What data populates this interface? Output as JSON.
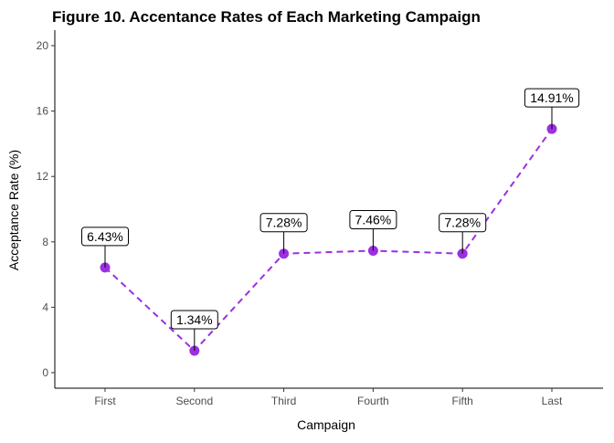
{
  "chart_data": {
    "type": "line",
    "title": "Figure 10. Accentance Rates of Each Marketing Campaign",
    "xlabel": "Campaign",
    "ylabel": "Acceptance Rate (%)",
    "categories": [
      "First",
      "Second",
      "Third",
      "Fourth",
      "Fifth",
      "Last"
    ],
    "values": [
      6.43,
      1.34,
      7.28,
      7.46,
      7.28,
      14.91
    ],
    "data_labels": [
      "6.43%",
      "1.34%",
      "7.28%",
      "7.46%",
      "7.28%",
      "14.91%"
    ],
    "ylim": [
      0,
      20
    ],
    "yticks": [
      0,
      4,
      8,
      12,
      16,
      20
    ],
    "grid": false,
    "line_style": "dashed",
    "colors": {
      "series": "#9b30e0",
      "axis": "#000000",
      "tick_text": "#4d4d4d",
      "label_box_border": "#000000",
      "label_box_fill": "#ffffff"
    }
  }
}
